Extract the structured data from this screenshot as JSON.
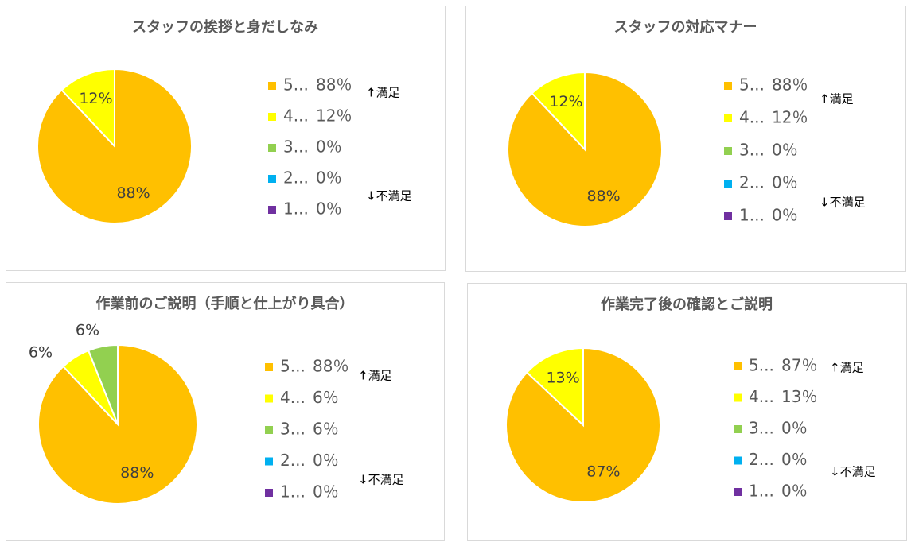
{
  "chart_data": [
    {
      "type": "pie",
      "title": "スタッフの挨拶と身だしなみ",
      "categories": [
        "5...",
        "4...",
        "3...",
        "2...",
        "1..."
      ],
      "values": [
        88,
        12,
        0,
        0,
        0
      ],
      "value_labels": [
        "88%",
        "12%",
        null,
        null,
        null
      ],
      "legend_value_labels": [
        "88％",
        "12％",
        "0％",
        "0％",
        "0％"
      ],
      "colors": [
        "#FFC000",
        "#FFFF00",
        "#92D050",
        "#00B0F0",
        "#7030A0"
      ],
      "annotations": [
        "↑満足",
        "↓不満足"
      ]
    },
    {
      "type": "pie",
      "title": "スタッフの対応マナー",
      "categories": [
        "5...",
        "4...",
        "3...",
        "2...",
        "1..."
      ],
      "values": [
        88,
        12,
        0,
        0,
        0
      ],
      "value_labels": [
        "88%",
        "12%",
        null,
        null,
        null
      ],
      "legend_value_labels": [
        "88％",
        "12％",
        "0％",
        "0％",
        "0％"
      ],
      "colors": [
        "#FFC000",
        "#FFFF00",
        "#92D050",
        "#00B0F0",
        "#7030A0"
      ],
      "annotations": [
        "↑満足",
        "↓不満足"
      ]
    },
    {
      "type": "pie",
      "title": "作業前のご説明（手順と仕上がり具合）",
      "categories": [
        "5...",
        "4...",
        "3...",
        "2...",
        "1..."
      ],
      "values": [
        88,
        6,
        6,
        0,
        0
      ],
      "value_labels": [
        "88%",
        "6%",
        "6%",
        null,
        null
      ],
      "legend_value_labels": [
        "88％",
        "6％",
        "6％",
        "0％",
        "0％"
      ],
      "colors": [
        "#FFC000",
        "#FFFF00",
        "#92D050",
        "#00B0F0",
        "#7030A0"
      ],
      "annotations": [
        "↑満足",
        "↓不満足"
      ]
    },
    {
      "type": "pie",
      "title": "作業完了後の確認とご説明",
      "categories": [
        "5...",
        "4...",
        "3...",
        "2...",
        "1..."
      ],
      "values": [
        87,
        13,
        0,
        0,
        0
      ],
      "value_labels": [
        "87%",
        "13%",
        null,
        null,
        null
      ],
      "legend_value_labels": [
        "87％",
        "13％",
        "0％",
        "0％",
        "0％"
      ],
      "colors": [
        "#FFC000",
        "#FFFF00",
        "#92D050",
        "#00B0F0",
        "#7030A0"
      ],
      "annotations": [
        "↑満足",
        "↓不満足"
      ]
    }
  ]
}
